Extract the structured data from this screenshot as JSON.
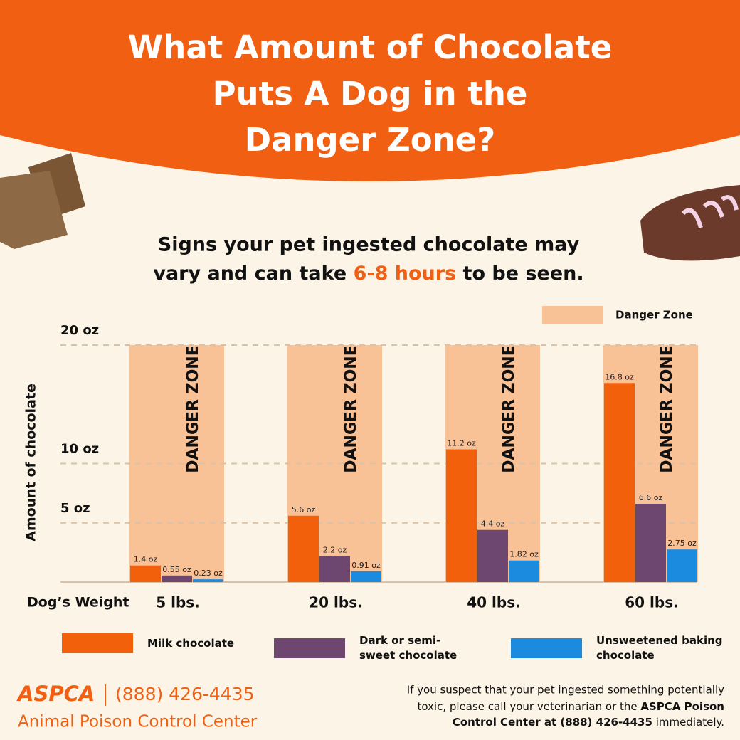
{
  "header": {
    "title": [
      "What Amount of Chocolate",
      "Puts A Dog in the",
      "Danger Zone?"
    ]
  },
  "subtitle": {
    "line1": "Signs your pet ingested chocolate may",
    "line2_start": "vary and can take ",
    "highlight": "6-8 hours",
    "line2_end": " to be seen."
  },
  "chart_data": {
    "type": "bar",
    "y_label": "Amount of chocolate",
    "x_label": "Dog’s Weight",
    "categories": [
      "5 lbs.",
      "20 lbs.",
      "40 lbs.",
      "60 lbs."
    ],
    "series": [
      {
        "name": "Milk chocolate",
        "color": "#f3600b",
        "values": [
          1.4,
          5.6,
          11.2,
          16.8
        ],
        "value_labels": [
          "1.4 oz",
          "5.6 oz",
          "11.2 oz",
          "16.8 oz"
        ]
      },
      {
        "name": "Dark or semi-sweet chocolate",
        "color": "#6e4771",
        "values": [
          0.55,
          2.2,
          4.4,
          6.6
        ],
        "value_labels": [
          "0.55 oz",
          "2.2 oz",
          "4.4 oz",
          "6.6 oz"
        ]
      },
      {
        "name": "Unsweetened baking chocolate",
        "color": "#1b8be0",
        "values": [
          0.23,
          0.91,
          1.82,
          2.75
        ],
        "value_labels": [
          "0.23 oz",
          "0.91 oz",
          "1.82 oz",
          "2.75 oz"
        ]
      }
    ],
    "danger_zone": {
      "legend": "Danger Zone",
      "band_text": "DANGER ZONE",
      "color": "#f9c196"
    },
    "ylim": [
      0,
      20
    ],
    "yticks": [
      {
        "value": 5,
        "label": "5 oz"
      },
      {
        "value": 10,
        "label": "10 oz"
      },
      {
        "value": 20,
        "label": "20 oz"
      }
    ],
    "grid": true
  },
  "footer": {
    "brand": "ASPCA",
    "phone": "(888) 426-4435",
    "center": "Animal Poison Control Center",
    "note_line1": "If you suspect that your pet ingested something potentially",
    "note_line2_start": "toxic, please call your veterinarian or the ",
    "note_line2_bold": "ASPCA Poison",
    "note_line3_bold": "Control Center at (888) 426-4435",
    "note_line3_end": " immediately."
  }
}
